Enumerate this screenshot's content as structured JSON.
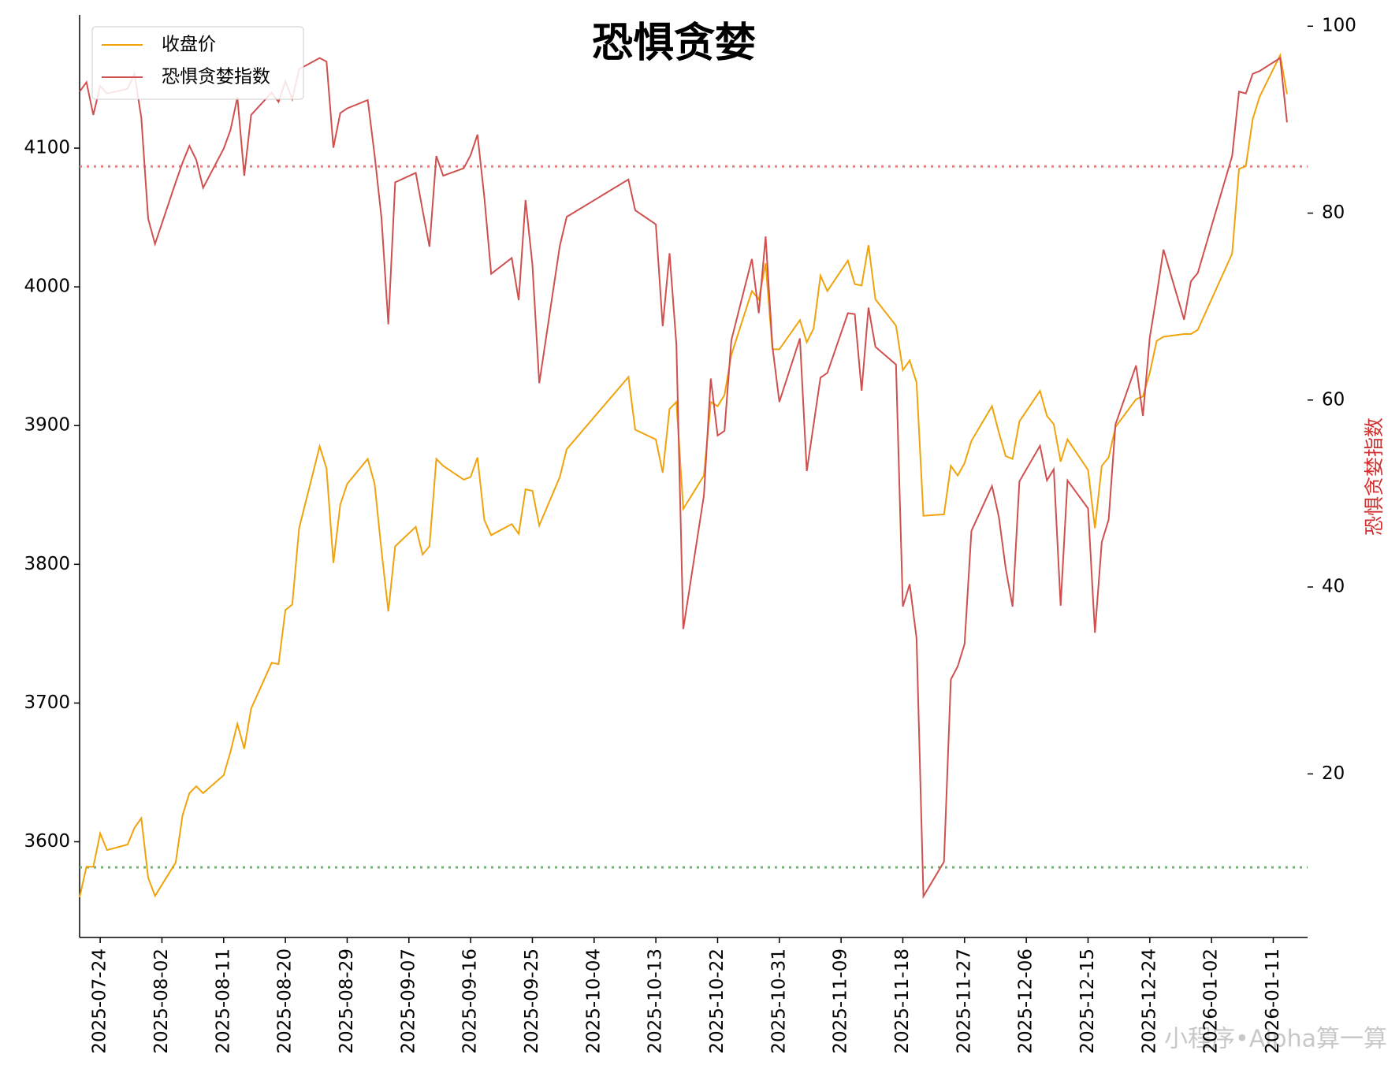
{
  "chart_data": {
    "type": "line",
    "title": "恐惧贪婪",
    "y2label": "恐惧贪婪指数",
    "watermark": "小程序•Alpha算一算",
    "x": [
      "2025-07-21",
      "2025-07-22",
      "2025-07-23",
      "2025-07-24",
      "2025-07-25",
      "2025-07-28",
      "2025-07-29",
      "2025-07-30",
      "2025-07-31",
      "2025-08-01",
      "2025-08-04",
      "2025-08-05",
      "2025-08-06",
      "2025-08-07",
      "2025-08-08",
      "2025-08-11",
      "2025-08-12",
      "2025-08-13",
      "2025-08-14",
      "2025-08-15",
      "2025-08-18",
      "2025-08-19",
      "2025-08-20",
      "2025-08-21",
      "2025-08-22",
      "2025-08-25",
      "2025-08-26",
      "2025-08-27",
      "2025-08-28",
      "2025-08-29",
      "2025-09-01",
      "2025-09-02",
      "2025-09-03",
      "2025-09-04",
      "2025-09-05",
      "2025-09-08",
      "2025-09-09",
      "2025-09-10",
      "2025-09-11",
      "2025-09-12",
      "2025-09-15",
      "2025-09-16",
      "2025-09-17",
      "2025-09-18",
      "2025-09-19",
      "2025-09-22",
      "2025-09-23",
      "2025-09-24",
      "2025-09-25",
      "2025-09-26",
      "2025-09-29",
      "2025-09-30",
      "2025-10-09",
      "2025-10-10",
      "2025-10-13",
      "2025-10-14",
      "2025-10-15",
      "2025-10-16",
      "2025-10-17",
      "2025-10-20",
      "2025-10-21",
      "2025-10-22",
      "2025-10-23",
      "2025-10-24",
      "2025-10-27",
      "2025-10-28",
      "2025-10-29",
      "2025-10-30",
      "2025-10-31",
      "2025-11-03",
      "2025-11-04",
      "2025-11-05",
      "2025-11-06",
      "2025-11-07",
      "2025-11-10",
      "2025-11-11",
      "2025-11-12",
      "2025-11-13",
      "2025-11-14",
      "2025-11-17",
      "2025-11-18",
      "2025-11-19",
      "2025-11-20",
      "2025-11-21",
      "2025-11-24",
      "2025-11-25",
      "2025-11-26",
      "2025-11-27",
      "2025-11-28",
      "2025-12-01",
      "2025-12-02",
      "2025-12-03",
      "2025-12-04",
      "2025-12-05",
      "2025-12-08",
      "2025-12-09",
      "2025-12-10",
      "2025-12-11",
      "2025-12-12",
      "2025-12-15",
      "2025-12-16",
      "2025-12-17",
      "2025-12-18",
      "2025-12-19",
      "2025-12-22",
      "2025-12-23",
      "2025-12-24",
      "2025-12-25",
      "2025-12-26",
      "2025-12-29",
      "2025-12-30",
      "2025-12-31",
      "2026-01-05",
      "2026-01-06",
      "2026-01-07",
      "2026-01-08",
      "2026-01-09",
      "2026-01-12",
      "2026-01-13"
    ],
    "series": [
      {
        "name": "收盘价",
        "color": "#f0a30a",
        "values": [
          3560,
          3582,
          3582,
          3606,
          3594,
          3598,
          3610,
          3617,
          3574,
          3561,
          3585,
          3619,
          3635,
          3640,
          3635,
          3648,
          3665,
          3685,
          3667,
          3696,
          3729,
          3728,
          3767,
          3771,
          3826,
          3885,
          3869,
          3801,
          3843,
          3858,
          3876,
          3858,
          3810,
          3766,
          3813,
          3827,
          3807,
          3813,
          3876,
          3871,
          3861,
          3863,
          3877,
          3832,
          3821,
          3829,
          3822,
          3854,
          3853,
          3828,
          3863,
          3883,
          3935,
          3897,
          3890,
          3866,
          3912,
          3917,
          3840,
          3864,
          3917,
          3914,
          3922,
          3951,
          3997,
          3991,
          4017,
          3955,
          3955,
          3976,
          3960,
          3970,
          4008,
          3997,
          4019,
          4002,
          4001,
          4030,
          3991,
          3972,
          3940,
          3947,
          3931,
          3835,
          3836,
          3871,
          3864,
          3873,
          3889,
          3914,
          3895,
          3878,
          3876,
          3903,
          3925,
          3907,
          3901,
          3874,
          3890,
          3868,
          3826,
          3871,
          3877,
          3899,
          3919,
          3921,
          3938,
          3961,
          3964,
          3966,
          3966,
          3969,
          4024,
          4085,
          4087,
          4121,
          4137,
          4167,
          4139
        ]
      },
      {
        "name": "恐惧贪婪指数",
        "color": "#d05050",
        "axis": "y2",
        "values": [
          93,
          94,
          90.5,
          93.6,
          92.8,
          93.3,
          94.9,
          90.2,
          79.4,
          76.7,
          83.3,
          85.4,
          87.2,
          85.7,
          82.7,
          86.9,
          88.9,
          92.4,
          84,
          90.5,
          92.9,
          91.9,
          94.1,
          92.2,
          95.4,
          96.6,
          96.2,
          87,
          90.7,
          91.2,
          92.1,
          86.2,
          79.5,
          68.1,
          83.3,
          84.3,
          80.3,
          76.4,
          86.1,
          84,
          84.8,
          86.2,
          88.4,
          81.7,
          73.5,
          75.2,
          70.7,
          81.4,
          74.5,
          61.8,
          76.5,
          79.6,
          83.6,
          80.3,
          78.8,
          67.9,
          75.7,
          65.9,
          35.5,
          49.8,
          62.3,
          56.2,
          56.7,
          66.4,
          75.1,
          69.3,
          77.5,
          65.7,
          59.8,
          66.6,
          52.4,
          57.4,
          62.4,
          62.9,
          69.3,
          69.2,
          61,
          69.9,
          65.7,
          63.8,
          37.9,
          40.3,
          34.5,
          6.9,
          10.6,
          30.1,
          31.5,
          33.9,
          46,
          50.8,
          47.5,
          42,
          37.9,
          51.3,
          55.1,
          51.4,
          52.6,
          38,
          51.4,
          48.4,
          35.1,
          44.8,
          47.2,
          57.4,
          63.7,
          58.3,
          66.7,
          71.2,
          76.1,
          68.6,
          72.7,
          73.6,
          86.1,
          93,
          92.8,
          94.9,
          95.2,
          96.6,
          89.7
        ]
      }
    ],
    "hlines": [
      {
        "value": 85,
        "axis": "y2",
        "color": "#e88080"
      },
      {
        "value": 10,
        "axis": "y2",
        "color": "#70b070"
      }
    ],
    "xlim": [
      "2025-07-21",
      "2026-01-16"
    ],
    "xticks": [
      "2025-07-24",
      "2025-08-02",
      "2025-08-11",
      "2025-08-20",
      "2025-08-29",
      "2025-09-07",
      "2025-09-16",
      "2025-09-25",
      "2025-10-04",
      "2025-10-13",
      "2025-10-22",
      "2025-10-31",
      "2025-11-09",
      "2025-11-18",
      "2025-11-27",
      "2025-12-06",
      "2025-12-15",
      "2025-12-24",
      "2026-01-02",
      "2026-01-11"
    ],
    "ylim": [
      3531,
      4196
    ],
    "yticks": [
      3600,
      3700,
      3800,
      3900,
      4000,
      4100
    ],
    "y2lim": [
      2.5,
      101.2
    ],
    "y2ticks": [
      20,
      40,
      60,
      80,
      100
    ],
    "legend": "upper-left"
  }
}
